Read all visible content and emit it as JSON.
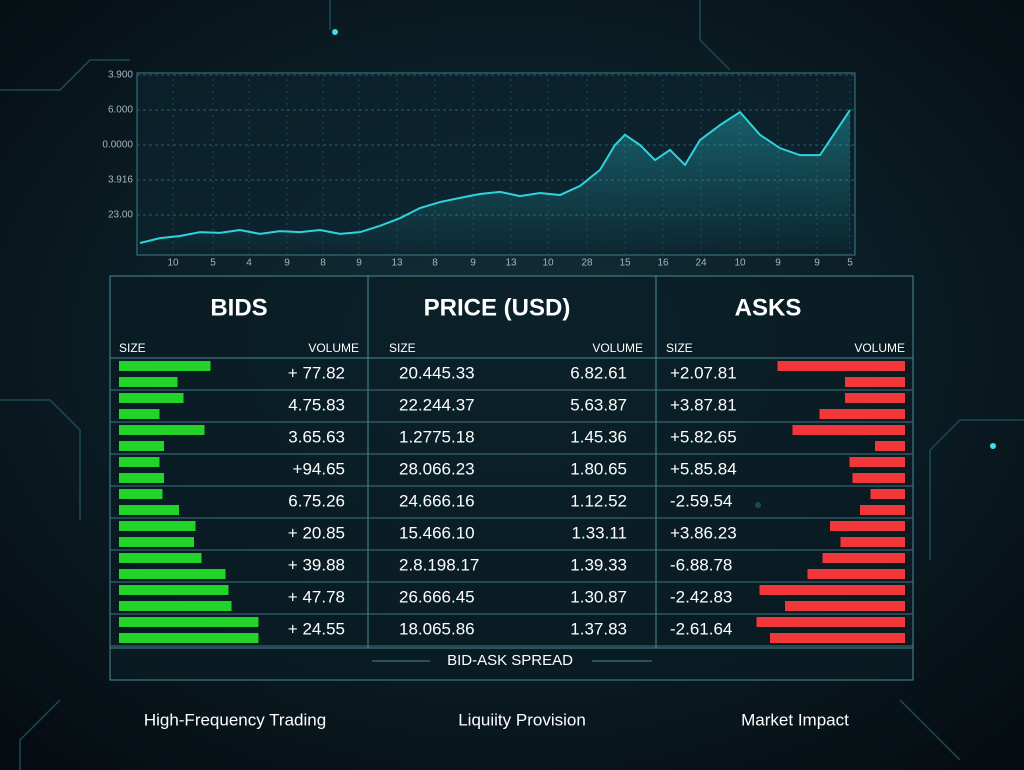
{
  "chart_data": {
    "type": "line",
    "xlim": [
      0,
      71
    ],
    "ylim": [
      0,
      5
    ],
    "xticks": [
      {
        "value": 3.3,
        "label": "10"
      },
      {
        "value": 7.3,
        "label": "5"
      },
      {
        "value": 10.9,
        "label": "4"
      },
      {
        "value": 14.7,
        "label": "9"
      },
      {
        "value": 18.3,
        "label": "8"
      },
      {
        "value": 21.9,
        "label": "9"
      },
      {
        "value": 25.7,
        "label": "13"
      },
      {
        "value": 29.5,
        "label": "8"
      },
      {
        "value": 33.3,
        "label": "9"
      },
      {
        "value": 37.1,
        "label": "13"
      },
      {
        "value": 40.8,
        "label": "10"
      },
      {
        "value": 44.7,
        "label": "28"
      },
      {
        "value": 48.5,
        "label": "15"
      },
      {
        "value": 52.3,
        "label": "16"
      },
      {
        "value": 56.1,
        "label": "24"
      },
      {
        "value": 60,
        "label": "10"
      },
      {
        "value": 63.8,
        "label": "9"
      },
      {
        "value": 67.7,
        "label": "9"
      },
      {
        "value": 71,
        "label": "5"
      }
    ],
    "yticks": [
      {
        "value": 1,
        "label": "23.00"
      },
      {
        "value": 2,
        "label": "3.916"
      },
      {
        "value": 3,
        "label": "0.0000"
      },
      {
        "value": 4,
        "label": "6.000"
      },
      {
        "value": 5,
        "label": "3.900"
      }
    ],
    "grid": true,
    "color": "#2fd3df",
    "x": [
      0,
      2,
      4,
      6,
      8,
      10,
      12,
      14,
      16,
      18,
      20,
      22,
      24,
      26,
      28,
      30,
      32,
      34,
      36,
      38,
      40,
      42,
      44,
      46,
      47.5,
      48.5,
      50,
      51.5,
      53,
      54.5,
      56,
      58,
      60,
      62,
      64,
      66,
      68,
      70,
      71
    ],
    "values": [
      0.2,
      0.34,
      0.4,
      0.51,
      0.49,
      0.57,
      0.46,
      0.54,
      0.51,
      0.57,
      0.46,
      0.51,
      0.69,
      0.91,
      1.2,
      1.37,
      1.49,
      1.6,
      1.66,
      1.54,
      1.63,
      1.57,
      1.83,
      2.29,
      3.0,
      3.29,
      3.0,
      2.57,
      2.86,
      2.43,
      3.14,
      3.57,
      3.94,
      3.29,
      2.91,
      2.71,
      2.71,
      3.57,
      4.0
    ]
  },
  "order_book": {
    "columns": [
      {
        "title": "BIDS",
        "size_label": "SIZE",
        "volume_label": "VOLUME"
      },
      {
        "title": "PRICE (USD)",
        "size_label": "SIZE",
        "volume_label": "VOLUME"
      },
      {
        "title": "ASKS",
        "size_label": "SIZE",
        "volume_label": "VOLUME"
      }
    ],
    "rows": [
      {
        "bid": "+ 77.82",
        "price": "20.445.33",
        "price_volume": "6.82.61",
        "ask": "+2.07.81",
        "bid_depth": [
          61,
          39
        ],
        "ask_depth": [
          85,
          40
        ]
      },
      {
        "bid": "4.75.83",
        "price": "22.244.37",
        "price_volume": "5.63.87",
        "ask": "+3.87.81",
        "bid_depth": [
          43,
          27
        ],
        "ask_depth": [
          40,
          57
        ]
      },
      {
        "bid": "3.65.63",
        "price": "1.2775.18",
        "price_volume": "1.45.36",
        "ask": "+5.82.65",
        "bid_depth": [
          57,
          30
        ],
        "ask_depth": [
          75,
          20
        ]
      },
      {
        "bid": "+94.65",
        "price": "28.066.23",
        "price_volume": "1.80.65",
        "ask": "+5.85.84",
        "bid_depth": [
          27,
          30
        ],
        "ask_depth": [
          37,
          35
        ]
      },
      {
        "bid": "6.75.26",
        "price": "24.666.16",
        "price_volume": "1.12.52",
        "ask": "-2.59.54",
        "bid_depth": [
          29,
          40
        ],
        "ask_depth": [
          23,
          30
        ]
      },
      {
        "bid": "+ 20.85",
        "price": "15.466.10",
        "price_volume": "1.33.11",
        "ask": "+3.86.23",
        "bid_depth": [
          51,
          50
        ],
        "ask_depth": [
          50,
          43
        ]
      },
      {
        "bid": "+ 39.88",
        "price": "2.8.198.17",
        "price_volume": "1.39.33",
        "ask": "-6.88.78",
        "bid_depth": [
          55,
          71
        ],
        "ask_depth": [
          55,
          65
        ]
      },
      {
        "bid": "+ 47.78",
        "price": "26.666.45",
        "price_volume": "1.30.87",
        "ask": "-2.42.83",
        "bid_depth": [
          73,
          75
        ],
        "ask_depth": [
          97,
          80
        ]
      },
      {
        "bid": "+ 24.55",
        "price": "18.065.86",
        "price_volume": "1.37.83",
        "ask": "-2.61.64",
        "bid_depth": [
          93,
          93
        ],
        "ask_depth": [
          99,
          90
        ]
      }
    ],
    "footer": "BID-ASK SPREAD"
  },
  "captions": [
    "High-Frequency Trading",
    "Liquiity Provision",
    "Market Impact"
  ]
}
